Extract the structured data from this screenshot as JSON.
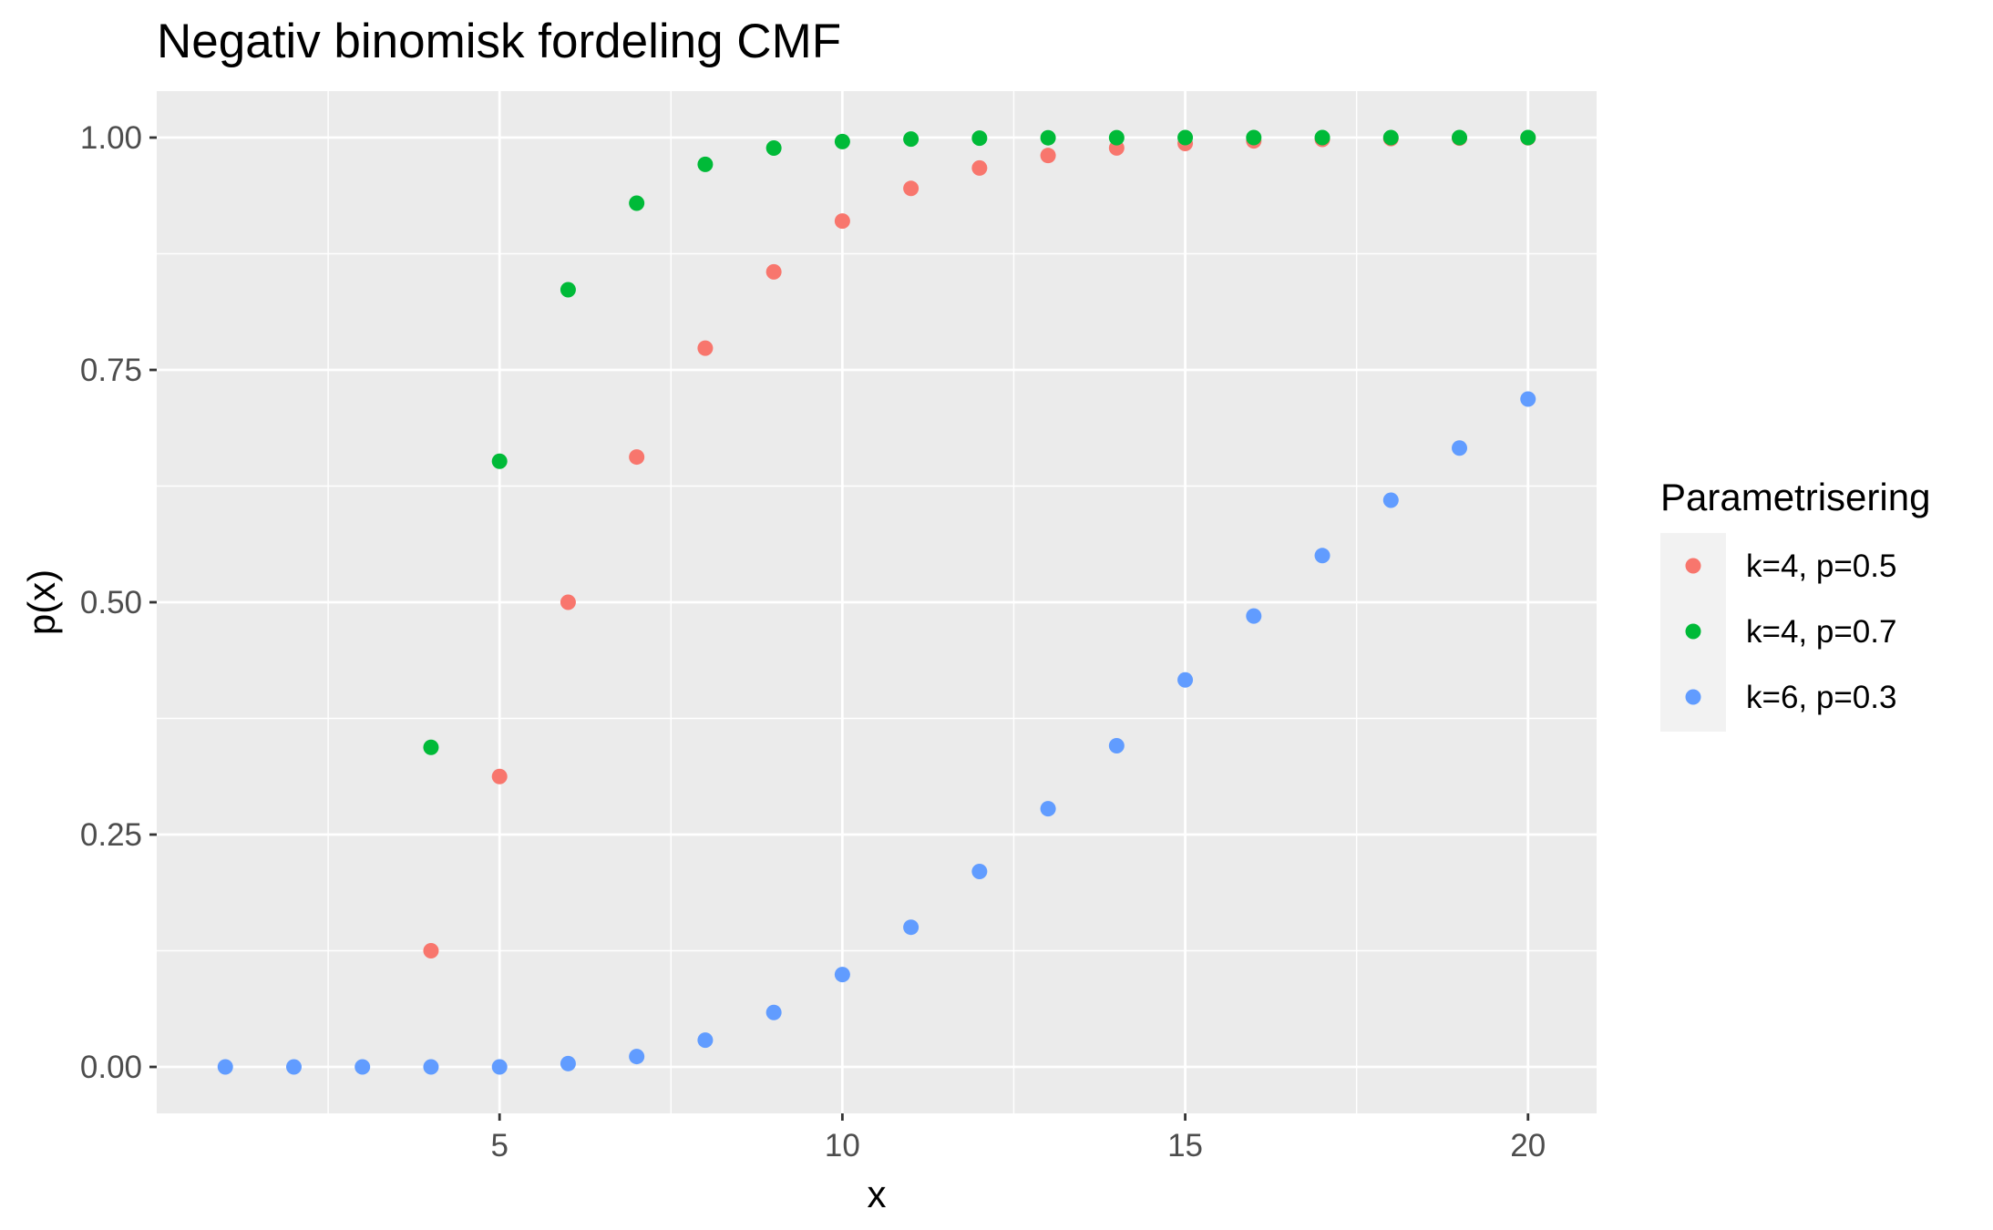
{
  "chart_data": {
    "type": "scatter",
    "title": "Negativ binomisk fordeling CMF",
    "xlabel": "x",
    "ylabel": "p(x)",
    "xlim": [
      0,
      21
    ],
    "ylim": [
      -0.05,
      1.05
    ],
    "x_ticks": [
      5,
      10,
      15,
      20
    ],
    "x_tick_labels": [
      "5",
      "10",
      "15",
      "20"
    ],
    "y_ticks": [
      0,
      0.25,
      0.5,
      0.75,
      1.0
    ],
    "y_tick_labels": [
      "0.00",
      "0.25",
      "0.50",
      "0.75",
      "1.00"
    ],
    "grid": true,
    "legend": {
      "title": "Parametrisering",
      "placement": "right"
    },
    "series": [
      {
        "name": "k=4, p=0.5",
        "color": "#F8766D",
        "x": [
          4,
          5,
          6,
          7,
          8,
          9,
          10,
          11,
          12,
          13,
          14,
          15,
          16,
          17,
          18,
          19,
          20
        ],
        "values": [
          0.125,
          0.3125,
          0.5,
          0.6563,
          0.7734,
          0.8555,
          0.9102,
          0.9453,
          0.9673,
          0.9807,
          0.9888,
          0.9936,
          0.9964,
          0.998,
          0.9989,
          0.9994,
          0.9997
        ]
      },
      {
        "name": "k=4, p=0.7",
        "color": "#00BA38",
        "x": [
          4,
          5,
          6,
          7,
          8,
          9,
          10,
          11,
          12,
          13,
          14,
          15,
          16,
          17,
          18,
          19,
          20
        ],
        "values": [
          0.3439,
          0.6517,
          0.8363,
          0.9294,
          0.9712,
          0.9887,
          0.9957,
          0.9984,
          0.9994,
          0.9998,
          0.9999,
          1.0,
          1.0,
          1.0,
          1.0,
          1.0,
          1.0
        ]
      },
      {
        "name": "k=6, p=0.3",
        "color": "#619CFF",
        "x": [
          1,
          2,
          3,
          4,
          5,
          6,
          7,
          8,
          9,
          10,
          11,
          12,
          13,
          14,
          15,
          16,
          17,
          18,
          19,
          20
        ],
        "values": [
          0,
          0,
          0,
          0,
          0,
          0.0036,
          0.0112,
          0.0288,
          0.0586,
          0.0994,
          0.1503,
          0.2103,
          0.2778,
          0.3456,
          0.4164,
          0.4852,
          0.5502,
          0.6098,
          0.6659,
          0.7186
        ]
      }
    ]
  }
}
